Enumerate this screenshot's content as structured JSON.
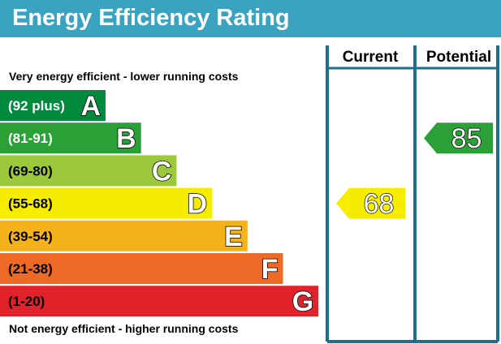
{
  "title": "Energy Efficiency Rating",
  "top_note": "Very energy efficient - lower running costs",
  "bottom_note": "Not energy efficient - higher running costs",
  "columns": {
    "current": "Current",
    "potential": "Potential"
  },
  "colors": {
    "header": "#3aa3bf",
    "frame": "#1d6f8c",
    "text": "#000000"
  },
  "chart_data": {
    "type": "bar",
    "title": "Energy Efficiency Rating",
    "categories": [
      "A",
      "B",
      "C",
      "D",
      "E",
      "F",
      "G"
    ],
    "bands": [
      {
        "letter": "A",
        "range": "(92 plus)",
        "color": "#008a3e",
        "text_color": "#ffffff"
      },
      {
        "letter": "B",
        "range": "(81-91)",
        "color": "#2aa036",
        "text_color": "#ffffff"
      },
      {
        "letter": "C",
        "range": "(69-80)",
        "color": "#9cc93b",
        "text_color": "#000000"
      },
      {
        "letter": "D",
        "range": "(55-68)",
        "color": "#f6ec00",
        "text_color": "#000000"
      },
      {
        "letter": "E",
        "range": "(39-54)",
        "color": "#f4b31a",
        "text_color": "#000000"
      },
      {
        "letter": "F",
        "range": "(21-38)",
        "color": "#ec6a25",
        "text_color": "#000000"
      },
      {
        "letter": "G",
        "range": "(1-20)",
        "color": "#e1222b",
        "text_color": "#000000"
      }
    ],
    "current": {
      "value": 68,
      "band": "D",
      "color": "#f6ec00"
    },
    "potential": {
      "value": 85,
      "band": "B",
      "color": "#2aa036"
    }
  }
}
